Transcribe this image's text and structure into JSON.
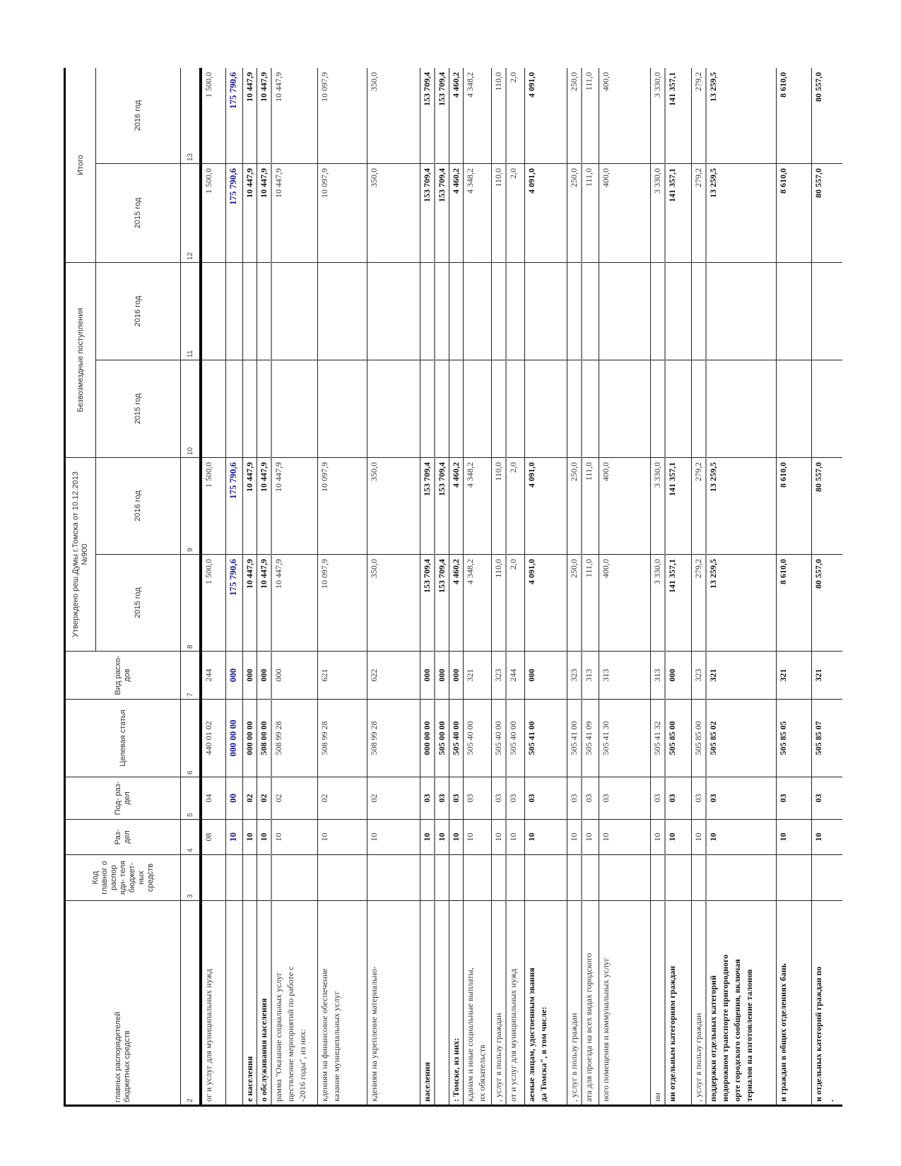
{
  "header": {
    "col_name": "главных распорядителей\nбюджетных средств",
    "col_code": "Код главног о распор яди- теля бюджет- ных средств",
    "col_razdel": "Раз- дел",
    "col_podrazdel": "Под- раз- дел",
    "col_cs": "Целевая статья",
    "col_vr": "Вид расхо- дов",
    "group_approved": "Утверждено реш.Думы г.Томска от 10.12.2013 №900",
    "group_grants": "Безвозмездные поступления",
    "group_total": "Итого",
    "year_2015": "2015 год",
    "year_2016": "2016 год",
    "numbers": [
      "2",
      "3",
      "4",
      "5",
      "6",
      "7",
      "8",
      "9",
      "10",
      "11",
      "12",
      "13"
    ]
  },
  "colors": {
    "text": "#333333",
    "accent_blue": "#1a1a8c"
  },
  "rows": [
    {
      "name": "ог и услуг для муниципальных нужд",
      "code": "",
      "razdel": "08",
      "podrazdel": "04",
      "cs": "440 01 02",
      "vr": "244",
      "a2015": "1 500,0",
      "a2016": "1 500,0",
      "g2015": "",
      "g2016": "",
      "t2015": "1 500,0",
      "t2016": "1 500,0",
      "style": ""
    },
    {
      "name": "",
      "code": "",
      "razdel": "10",
      "podrazdel": "00",
      "cs": "000 00 00",
      "vr": "000",
      "a2015": "175 790,6",
      "a2016": "175 790,6",
      "g2015": "",
      "g2016": "",
      "t2015": "175 790,6",
      "t2016": "175 790,6",
      "style": "b blue"
    },
    {
      "name": "е населения",
      "code": "",
      "razdel": "10",
      "podrazdel": "02",
      "cs": "000 00 00",
      "vr": "000",
      "a2015": "10 447,9",
      "a2016": "10 447,9",
      "g2015": "",
      "g2016": "",
      "t2015": "10 447,9",
      "t2016": "10 447,9",
      "style": "b"
    },
    {
      "name": "о обслуживания населения",
      "code": "",
      "razdel": "10",
      "podrazdel": "02",
      "cs": "508 00 00",
      "vr": "000",
      "a2015": "10 447,9",
      "a2016": "10 447,9",
      "g2015": "",
      "g2016": "",
      "t2015": "10 447,9",
      "t2016": "10 447,9",
      "style": "b g"
    },
    {
      "name": "рамма \"Оказание социальных услуг\nществление мероприятий по работе с\n-2016 годы\", из них:",
      "code": "",
      "razdel": "10",
      "podrazdel": "02",
      "cs": "508 99 28",
      "vr": "000",
      "a2015": "10 447,9",
      "a2016": "10 447,9",
      "g2015": "",
      "g2016": "",
      "t2015": "10 447,9",
      "t2016": "10 447,9",
      "style": ""
    },
    {
      "name": "кдениям на финансовое обеспечение\nказание муниципальных услуг",
      "code": "",
      "razdel": "10",
      "podrazdel": "02",
      "cs": "508 99 28",
      "vr": "621",
      "a2015": "10 097,9",
      "a2016": "10 097,9",
      "g2015": "",
      "g2016": "",
      "t2015": "10 097,9",
      "t2016": "10 097,9",
      "style": ""
    },
    {
      "name": "кдениям на укрепление материально-",
      "code": "",
      "razdel": "10",
      "podrazdel": "02",
      "cs": "508 99 28",
      "vr": "622",
      "a2015": "350,0",
      "a2016": "350,0",
      "g2015": "",
      "g2016": "",
      "t2015": "350,0",
      "t2016": "350,0",
      "style": ""
    },
    {
      "name": "населения",
      "code": "",
      "razdel": "10",
      "podrazdel": "03",
      "cs": "000 00 00",
      "vr": "000",
      "a2015": "153 709,4",
      "a2016": "153 709,4",
      "g2015": "",
      "g2016": "",
      "t2015": "153 709,4",
      "t2016": "153 709,4",
      "style": "b g"
    },
    {
      "name": "",
      "code": "",
      "razdel": "10",
      "podrazdel": "03",
      "cs": "505 00 00",
      "vr": "000",
      "a2015": "153 709,4",
      "a2016": "153 709,4",
      "g2015": "",
      "g2016": "",
      "t2015": "153 709,4",
      "t2016": "153 709,4",
      "style": "b"
    },
    {
      "name": ": Томске, из них:",
      "code": "",
      "razdel": "10",
      "podrazdel": "03",
      "cs": "505 40 00",
      "vr": "000",
      "a2015": "4 460,2",
      "a2016": "4 460,2",
      "g2015": "",
      "g2016": "",
      "t2015": "4 460,2",
      "t2016": "4 460,2",
      "style": "b"
    },
    {
      "name": "кданам и иные социальные выплаты,\nих обязательств",
      "code": "",
      "razdel": "10",
      "podrazdel": "03",
      "cs": "505 40 00",
      "vr": "321",
      "a2015": "4 348,2",
      "a2016": "4 348,2",
      "g2015": "",
      "g2016": "",
      "t2015": "4 348,2",
      "t2016": "4 348,2",
      "style": ""
    },
    {
      "name": ", услуг в пользу граждан",
      "code": "",
      "razdel": "10",
      "podrazdel": "03",
      "cs": "505 40 00",
      "vr": "323",
      "a2015": "110,0",
      "a2016": "110,0",
      "g2015": "",
      "g2016": "",
      "t2015": "110,0",
      "t2016": "110,0",
      "style": "g"
    },
    {
      "name": "от и услуг для муниципальных нужд",
      "code": "",
      "razdel": "10",
      "podrazdel": "03",
      "cs": "505 40 00",
      "vr": "244",
      "a2015": "2,0",
      "a2016": "2,0",
      "g2015": "",
      "g2016": "",
      "t2015": "2,0",
      "t2016": "2,0",
      "style": ""
    },
    {
      "name": "аемые лицам, удостоенным звания\nда Томска\", в том числе:",
      "code": "",
      "razdel": "10",
      "podrazdel": "03",
      "cs": "505 41 00",
      "vr": "000",
      "a2015": "4 091,0",
      "a2016": "4 091,0",
      "g2015": "",
      "g2016": "",
      "t2015": "4 091,0",
      "t2016": "4 091,0",
      "style": "b"
    },
    {
      "name": ", услуг в пользу граждан",
      "code": "",
      "razdel": "10",
      "podrazdel": "03",
      "cs": "505 41 00",
      "vr": "323",
      "a2015": "250,0",
      "a2016": "250,0",
      "g2015": "",
      "g2016": "",
      "t2015": "250,0",
      "t2016": "250,0",
      "style": "g"
    },
    {
      "name": "ата для проезда на всех видах городского",
      "code": "",
      "razdel": "10",
      "podrazdel": "03",
      "cs": "505 41 09",
      "vr": "313",
      "a2015": "111,0",
      "a2016": "111,0",
      "g2015": "",
      "g2016": "",
      "t2015": "111,0",
      "t2016": "111,0",
      "style": ""
    },
    {
      "name": "ного помещения и коммунальных услуг",
      "code": "",
      "razdel": "10",
      "podrazdel": "03",
      "cs": "505 41 30",
      "vr": "313",
      "a2015": "400,0",
      "a2016": "400,0",
      "g2015": "",
      "g2016": "",
      "t2015": "400,0",
      "t2016": "400,0",
      "style": ""
    },
    {
      "name": "ии",
      "code": "",
      "razdel": "10",
      "podrazdel": "03",
      "cs": "505 41 32",
      "vr": "313",
      "a2015": "3 330,0",
      "a2016": "3 330,0",
      "g2015": "",
      "g2016": "",
      "t2015": "3 330,0",
      "t2016": "3 330,0",
      "style": "g"
    },
    {
      "name": "ии отдельным категориям граждан",
      "code": "",
      "razdel": "10",
      "podrazdel": "03",
      "cs": "505 85 00",
      "vr": "000",
      "a2015": "141 357,1",
      "a2016": "141 357,1",
      "g2015": "",
      "g2016": "",
      "t2015": "141 357,1",
      "t2016": "141 357,1",
      "style": "b"
    },
    {
      "name": ", услуг в пользу граждан",
      "code": "",
      "razdel": "10",
      "podrazdel": "03",
      "cs": "505 85 00",
      "vr": "323",
      "a2015": "279,2",
      "a2016": "279,2",
      "g2015": "",
      "g2016": "",
      "t2015": "279,2",
      "t2016": "279,2",
      "style": "g"
    },
    {
      "name": "поддержки отдельных категорий\nнодорожном транспорте пригородного\nорте городского сообщения, включая\nтериалов на изготовление талонов",
      "code": "",
      "razdel": "10",
      "podrazdel": "03",
      "cs": "505 85 02",
      "vr": "321",
      "a2015": "13 259,5",
      "a2016": "13 259,5",
      "g2015": "",
      "g2016": "",
      "t2015": "13 259,5",
      "t2016": "13 259,5",
      "style": "b"
    },
    {
      "name": "и граждан в общих отделениях бань",
      "code": "",
      "razdel": "10",
      "podrazdel": "03",
      "cs": "505 85 05",
      "vr": "321",
      "a2015": "8 610,0",
      "a2016": "8 610,0",
      "g2015": "",
      "g2016": "",
      "t2015": "8 610,0",
      "t2016": "8 610,0",
      "style": "b"
    },
    {
      "name": "и отдельных категорий граждан по\n.",
      "code": "",
      "razdel": "10",
      "podrazdel": "03",
      "cs": "505 85 07",
      "vr": "321",
      "a2015": "80 557,0",
      "a2016": "80 557,0",
      "g2015": "",
      "g2016": "",
      "t2015": "80 557,0",
      "t2016": "80 557,0",
      "style": "b"
    }
  ]
}
